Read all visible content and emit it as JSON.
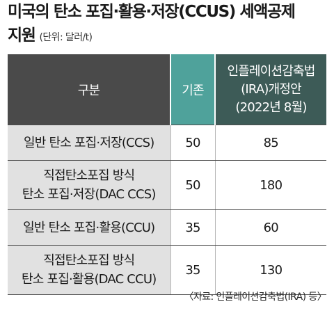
{
  "title": {
    "line1": "미국의 탄소 포집·활용·저장(CCUS) 세액공제",
    "line2": "지원",
    "unit": "(단위: 달러/t)"
  },
  "table": {
    "headers": {
      "division": "구분",
      "existing": "기존",
      "ira_line1": "인플레이션감축법",
      "ira_line2": "(IRA)개정안",
      "ira_line3": "(2022년 8월)"
    },
    "rows": [
      {
        "label_line1": "일반 탄소 포집·저장(CCS)",
        "label_line2": "",
        "existing": "50",
        "ira": "85"
      },
      {
        "label_line1": "직접탄소포집 방식",
        "label_line2": "탄소 포집·저장(DAC CCS)",
        "existing": "50",
        "ira": "180"
      },
      {
        "label_line1": "일반 탄소 포집·활용(CCU)",
        "label_line2": "",
        "existing": "35",
        "ira": "60"
      },
      {
        "label_line1": "직접탄소포집 방식",
        "label_line2": "탄소 포집·활용(DAC CCU)",
        "existing": "35",
        "ira": "130"
      }
    ]
  },
  "source": "〈자료: 인플레이션감축법(IRA) 등〉",
  "colors": {
    "header_division": "#4a4a4a",
    "header_existing": "#4fa29b",
    "header_ira": "#3d5b57",
    "label_cell": "#e1e1e1"
  }
}
